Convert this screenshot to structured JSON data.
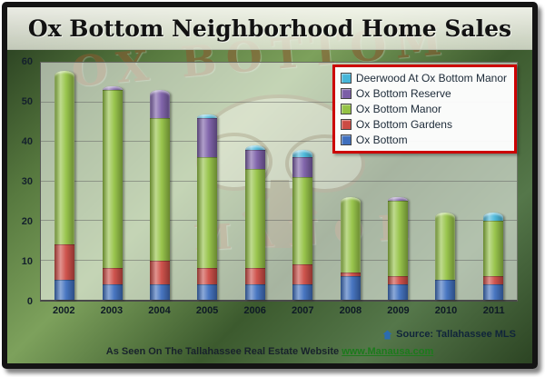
{
  "title": "Ox Bottom Neighborhood Home Sales",
  "watermark": {
    "line1": "OX BOTTOM",
    "line2": "MANOR"
  },
  "footer": {
    "source": "Source: Tallahassee MLS",
    "tagline": "As Seen On The Tallahassee Real Estate Website",
    "link": "www.Manausa.com"
  },
  "colors": {
    "legend_border": "#cc0000",
    "link_green": "#1c7a1c"
  },
  "chart_data": {
    "type": "bar",
    "stacked": true,
    "title": "Ox Bottom Neighborhood Home Sales",
    "xlabel": "",
    "ylabel": "",
    "ylim": [
      0,
      60
    ],
    "yticks": [
      0,
      10,
      20,
      30,
      40,
      50,
      60
    ],
    "grid": true,
    "legend_position": "top-right",
    "categories": [
      "2002",
      "2003",
      "2004",
      "2005",
      "2006",
      "2007",
      "2008",
      "2009",
      "2010",
      "2011"
    ],
    "series": [
      {
        "name": "Ox Bottom",
        "color": "#3f6fbe",
        "values": [
          5,
          4,
          4,
          4,
          4,
          4,
          6,
          4,
          5,
          4
        ]
      },
      {
        "name": "Ox Bottom Gardens",
        "color": "#cc4b44",
        "values": [
          9,
          4,
          6,
          4,
          4,
          5,
          1,
          2,
          0,
          2
        ]
      },
      {
        "name": "Ox Bottom Manor",
        "color": "#94c244",
        "values": [
          44,
          45,
          36,
          28,
          25,
          22,
          19,
          19,
          17,
          14
        ]
      },
      {
        "name": "Ox Bottom Reserve",
        "color": "#7b5ea7",
        "values": [
          0,
          1,
          7,
          10,
          5,
          5,
          0,
          1,
          0,
          0
        ]
      },
      {
        "name": "Deerwood At Ox Bottom Manor",
        "color": "#45b5d8",
        "values": [
          0,
          0,
          0,
          1,
          1,
          2,
          0,
          0,
          0,
          2
        ]
      }
    ]
  }
}
